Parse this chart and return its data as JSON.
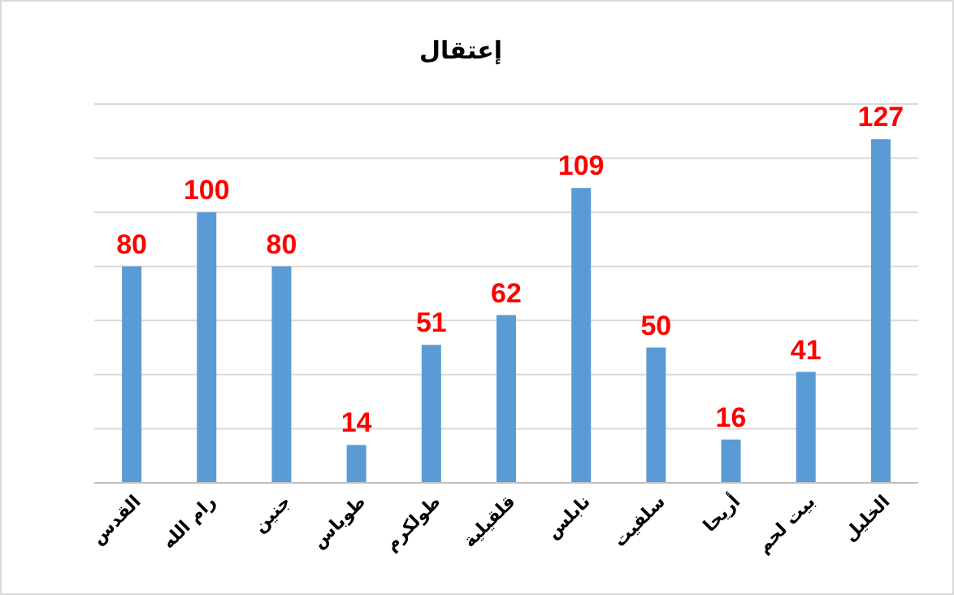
{
  "chart_data": {
    "type": "bar",
    "title": "إعتقال",
    "categories": [
      "القدس",
      "رام الله",
      "جنين",
      "طوباس",
      "طولكرم",
      "قلقيلية",
      "نابلس",
      "سلفيت",
      "أريحا",
      "بيت لحم",
      "الخليل"
    ],
    "values": [
      80,
      100,
      80,
      14,
      51,
      62,
      109,
      50,
      16,
      41,
      127
    ],
    "color": "#5b9bd5",
    "ylim": [
      0,
      140
    ],
    "yticks": [
      {
        "value": 0,
        "label": null
      },
      {
        "value": 20,
        "label": null
      },
      {
        "value": 40,
        "label": null
      },
      {
        "value": 60,
        "label": null
      },
      {
        "value": 80,
        "label": null
      },
      {
        "value": 100,
        "label": null
      },
      {
        "value": 120,
        "label": null
      },
      {
        "value": 140,
        "label": null
      }
    ],
    "grid": true,
    "tick_labels": "x",
    "data_labels": true
  }
}
